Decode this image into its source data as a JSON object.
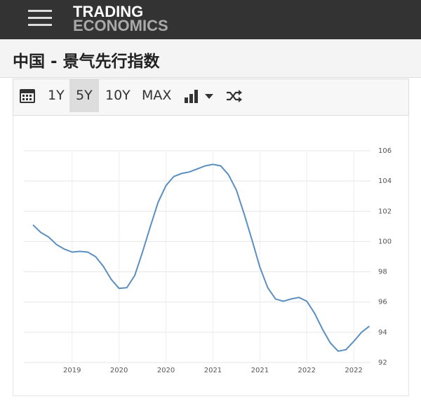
{
  "header": {
    "logo_top": "TRADING",
    "logo_bottom": "ECONOMICS"
  },
  "page_title": "中国 - 景气先行指数",
  "toolbar": {
    "ranges": [
      "1Y",
      "5Y",
      "10Y",
      "MAX"
    ],
    "selected": "5Y"
  },
  "chart_data": {
    "type": "line",
    "categories": [
      null,
      null,
      null,
      null,
      null,
      "2019",
      null,
      null,
      null,
      null,
      null,
      "2020",
      null,
      null,
      null,
      null,
      null,
      "2020",
      null,
      null,
      null,
      null,
      null,
      "2021",
      null,
      null,
      null,
      null,
      null,
      "2021",
      null,
      null,
      null,
      null,
      null,
      "2022",
      null,
      null,
      null,
      null,
      null,
      "2022",
      null,
      null
    ],
    "values": [
      101.1,
      100.6,
      100.3,
      99.8,
      99.5,
      99.3,
      99.35,
      99.3,
      99.0,
      98.35,
      97.5,
      96.9,
      96.95,
      97.75,
      99.3,
      101.0,
      102.6,
      103.7,
      104.3,
      104.5,
      104.6,
      104.8,
      105.0,
      105.1,
      105.0,
      104.4,
      103.4,
      101.8,
      100.1,
      98.3,
      96.95,
      96.2,
      96.05,
      96.2,
      96.3,
      96.05,
      95.25,
      94.2,
      93.3,
      92.75,
      92.85,
      93.4,
      94.0,
      94.4
    ],
    "color": "#5b8fbf",
    "ylim": [
      92,
      106
    ],
    "yticks": [
      92,
      94,
      96,
      98,
      100,
      102,
      104,
      106
    ],
    "grid": true
  }
}
